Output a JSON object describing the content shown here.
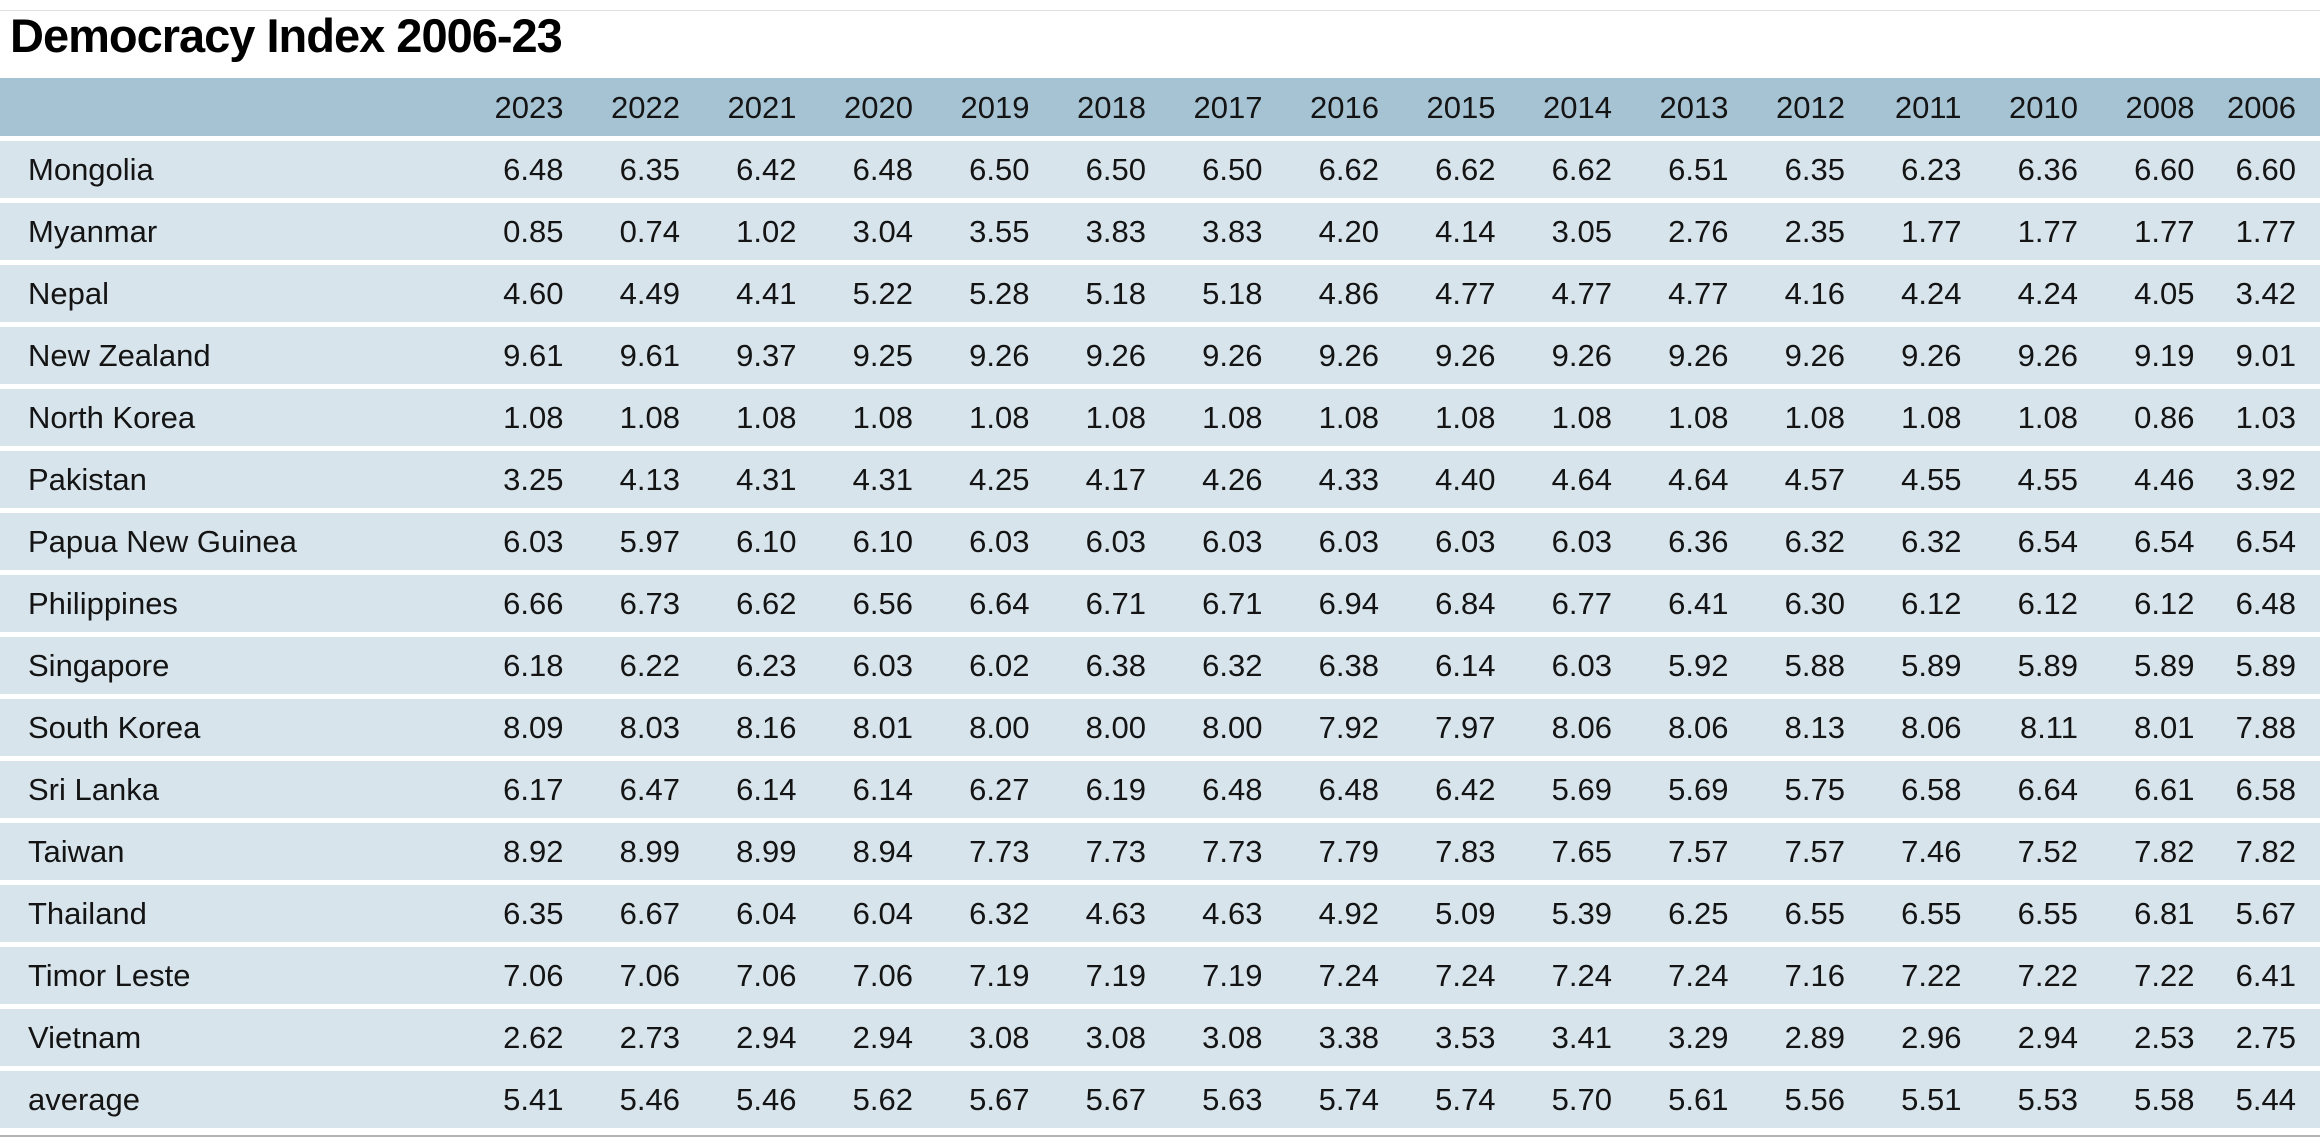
{
  "title": "Democracy Index 2006-23",
  "colors": {
    "header_bg": "#a6c3d4",
    "row_bg": "#d7e4ec",
    "text": "#141414",
    "bottom_rule": "#b3b3b3"
  },
  "chart_data": {
    "type": "table",
    "title": "Democracy Index 2006-23",
    "row_header_label": "",
    "columns": [
      "2023",
      "2022",
      "2021",
      "2020",
      "2019",
      "2018",
      "2017",
      "2016",
      "2015",
      "2014",
      "2013",
      "2012",
      "2011",
      "2010",
      "2008",
      "2006"
    ],
    "rows": [
      {
        "label": "Mongolia",
        "values": [
          "6.48",
          "6.35",
          "6.42",
          "6.48",
          "6.50",
          "6.50",
          "6.50",
          "6.62",
          "6.62",
          "6.62",
          "6.51",
          "6.35",
          "6.23",
          "6.36",
          "6.60",
          "6.60"
        ]
      },
      {
        "label": "Myanmar",
        "values": [
          "0.85",
          "0.74",
          "1.02",
          "3.04",
          "3.55",
          "3.83",
          "3.83",
          "4.20",
          "4.14",
          "3.05",
          "2.76",
          "2.35",
          "1.77",
          "1.77",
          "1.77",
          "1.77"
        ]
      },
      {
        "label": "Nepal",
        "values": [
          "4.60",
          "4.49",
          "4.41",
          "5.22",
          "5.28",
          "5.18",
          "5.18",
          "4.86",
          "4.77",
          "4.77",
          "4.77",
          "4.16",
          "4.24",
          "4.24",
          "4.05",
          "3.42"
        ]
      },
      {
        "label": "New Zealand",
        "values": [
          "9.61",
          "9.61",
          "9.37",
          "9.25",
          "9.26",
          "9.26",
          "9.26",
          "9.26",
          "9.26",
          "9.26",
          "9.26",
          "9.26",
          "9.26",
          "9.26",
          "9.19",
          "9.01"
        ]
      },
      {
        "label": "North Korea",
        "values": [
          "1.08",
          "1.08",
          "1.08",
          "1.08",
          "1.08",
          "1.08",
          "1.08",
          "1.08",
          "1.08",
          "1.08",
          "1.08",
          "1.08",
          "1.08",
          "1.08",
          "0.86",
          "1.03"
        ]
      },
      {
        "label": "Pakistan",
        "values": [
          "3.25",
          "4.13",
          "4.31",
          "4.31",
          "4.25",
          "4.17",
          "4.26",
          "4.33",
          "4.40",
          "4.64",
          "4.64",
          "4.57",
          "4.55",
          "4.55",
          "4.46",
          "3.92"
        ]
      },
      {
        "label": "Papua New Guinea",
        "values": [
          "6.03",
          "5.97",
          "6.10",
          "6.10",
          "6.03",
          "6.03",
          "6.03",
          "6.03",
          "6.03",
          "6.03",
          "6.36",
          "6.32",
          "6.32",
          "6.54",
          "6.54",
          "6.54"
        ]
      },
      {
        "label": "Philippines",
        "values": [
          "6.66",
          "6.73",
          "6.62",
          "6.56",
          "6.64",
          "6.71",
          "6.71",
          "6.94",
          "6.84",
          "6.77",
          "6.41",
          "6.30",
          "6.12",
          "6.12",
          "6.12",
          "6.48"
        ]
      },
      {
        "label": "Singapore",
        "values": [
          "6.18",
          "6.22",
          "6.23",
          "6.03",
          "6.02",
          "6.38",
          "6.32",
          "6.38",
          "6.14",
          "6.03",
          "5.92",
          "5.88",
          "5.89",
          "5.89",
          "5.89",
          "5.89"
        ]
      },
      {
        "label": "South Korea",
        "values": [
          "8.09",
          "8.03",
          "8.16",
          "8.01",
          "8.00",
          "8.00",
          "8.00",
          "7.92",
          "7.97",
          "8.06",
          "8.06",
          "8.13",
          "8.06",
          "8.11",
          "8.01",
          "7.88"
        ]
      },
      {
        "label": "Sri Lanka",
        "values": [
          "6.17",
          "6.47",
          "6.14",
          "6.14",
          "6.27",
          "6.19",
          "6.48",
          "6.48",
          "6.42",
          "5.69",
          "5.69",
          "5.75",
          "6.58",
          "6.64",
          "6.61",
          "6.58"
        ]
      },
      {
        "label": "Taiwan",
        "values": [
          "8.92",
          "8.99",
          "8.99",
          "8.94",
          "7.73",
          "7.73",
          "7.73",
          "7.79",
          "7.83",
          "7.65",
          "7.57",
          "7.57",
          "7.46",
          "7.52",
          "7.82",
          "7.82"
        ]
      },
      {
        "label": "Thailand",
        "values": [
          "6.35",
          "6.67",
          "6.04",
          "6.04",
          "6.32",
          "4.63",
          "4.63",
          "4.92",
          "5.09",
          "5.39",
          "6.25",
          "6.55",
          "6.55",
          "6.55",
          "6.81",
          "5.67"
        ]
      },
      {
        "label": "Timor Leste",
        "values": [
          "7.06",
          "7.06",
          "7.06",
          "7.06",
          "7.19",
          "7.19",
          "7.19",
          "7.24",
          "7.24",
          "7.24",
          "7.24",
          "7.16",
          "7.22",
          "7.22",
          "7.22",
          "6.41"
        ]
      },
      {
        "label": "Vietnam",
        "values": [
          "2.62",
          "2.73",
          "2.94",
          "2.94",
          "3.08",
          "3.08",
          "3.08",
          "3.38",
          "3.53",
          "3.41",
          "3.29",
          "2.89",
          "2.96",
          "2.94",
          "2.53",
          "2.75"
        ]
      },
      {
        "label": "average",
        "values": [
          "5.41",
          "5.46",
          "5.46",
          "5.62",
          "5.67",
          "5.67",
          "5.63",
          "5.74",
          "5.74",
          "5.70",
          "5.61",
          "5.56",
          "5.51",
          "5.53",
          "5.58",
          "5.44"
        ]
      }
    ]
  }
}
